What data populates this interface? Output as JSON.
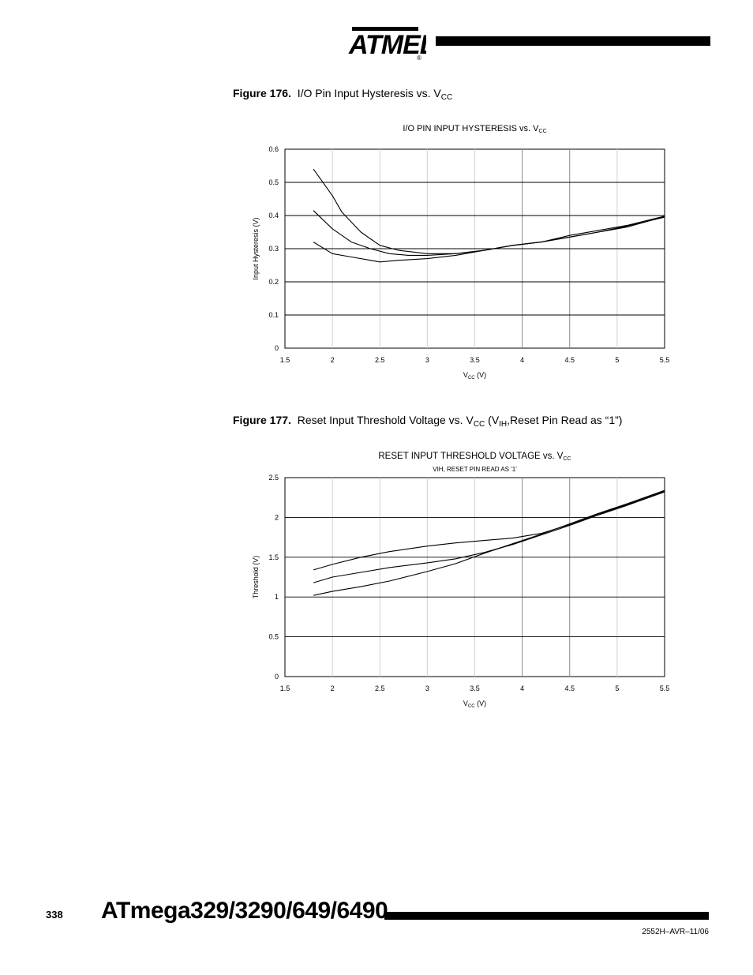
{
  "header": {
    "brand": "ATMEL",
    "registered_mark": "®"
  },
  "figures": [
    {
      "label": "Figure 176.",
      "caption_main": "I/O Pin Input Hysteresis vs. V",
      "caption_sub": "CC",
      "caption_tail": "",
      "caption_sub2": "",
      "caption_end": ""
    },
    {
      "label": "Figure 177.",
      "caption_main": "Reset Input Threshold Voltage vs. V",
      "caption_sub": "CC",
      "caption_tail": " (V",
      "caption_sub2": "IH",
      "caption_end": ",Reset Pin Read as “1”)"
    }
  ],
  "chart_data": [
    {
      "type": "line",
      "title": "I/O PIN INPUT HYSTERESIS vs. V",
      "title_sub": "CC",
      "subtitle": "",
      "xlabel": "V",
      "xlabel_sub": "CC",
      "xlabel_unit": " (V)",
      "ylabel": "Input Hysteresis (V)",
      "xlim": [
        1.5,
        5.5
      ],
      "ylim": [
        0,
        0.6
      ],
      "xticks": [
        "1.5",
        "2",
        "2.5",
        "3",
        "3.5",
        "4",
        "4.5",
        "5",
        "5.5"
      ],
      "yticks": [
        "0",
        "0.1",
        "0.2",
        "0.3",
        "0.4",
        "0.5",
        "0.6"
      ],
      "grid": {
        "horizontal": true,
        "vertical": true
      },
      "series": [
        {
          "x": [
            1.8,
            2.0,
            2.1,
            2.3,
            2.5,
            2.7,
            3.0,
            3.3,
            3.6,
            3.9,
            4.2,
            4.5,
            4.8,
            5.1,
            5.5
          ],
          "values": [
            0.54,
            0.46,
            0.41,
            0.35,
            0.31,
            0.295,
            0.285,
            0.285,
            0.295,
            0.31,
            0.32,
            0.335,
            0.35,
            0.365,
            0.397
          ]
        },
        {
          "x": [
            1.8,
            2.0,
            2.2,
            2.4,
            2.6,
            2.8,
            3.0,
            3.3,
            3.6,
            3.9,
            4.2,
            4.5,
            4.8,
            5.1,
            5.5
          ],
          "values": [
            0.415,
            0.36,
            0.32,
            0.3,
            0.285,
            0.28,
            0.28,
            0.285,
            0.295,
            0.31,
            0.32,
            0.335,
            0.35,
            0.368,
            0.395
          ]
        },
        {
          "x": [
            1.8,
            2.0,
            2.2,
            2.4,
            2.5,
            2.7,
            3.0,
            3.3,
            3.6,
            3.9,
            4.2,
            4.5,
            4.8,
            5.1,
            5.5
          ],
          "values": [
            0.32,
            0.285,
            0.275,
            0.265,
            0.26,
            0.265,
            0.27,
            0.28,
            0.295,
            0.31,
            0.32,
            0.34,
            0.355,
            0.37,
            0.398
          ]
        }
      ]
    },
    {
      "type": "line",
      "title": "RESET INPUT THRESHOLD VOLTAGE vs. V",
      "title_sub": "CC",
      "subtitle": "VIH, RESET PIN READ AS '1'",
      "xlabel": "V",
      "xlabel_sub": "CC",
      "xlabel_unit": " (V)",
      "ylabel": "Threshold (V)",
      "xlim": [
        1.5,
        5.5
      ],
      "ylim": [
        0,
        2.5
      ],
      "xticks": [
        "1.5",
        "2",
        "2.5",
        "3",
        "3.5",
        "4",
        "4.5",
        "5",
        "5.5"
      ],
      "yticks": [
        "0",
        "0.5",
        "1",
        "1.5",
        "2",
        "2.5"
      ],
      "grid": {
        "horizontal": true,
        "vertical": true
      },
      "series": [
        {
          "x": [
            1.8,
            2.0,
            2.3,
            2.6,
            3.0,
            3.3,
            3.6,
            3.9,
            4.2,
            4.5,
            4.8,
            5.1,
            5.5
          ],
          "values": [
            1.34,
            1.41,
            1.5,
            1.57,
            1.64,
            1.68,
            1.71,
            1.74,
            1.8,
            1.91,
            2.04,
            2.16,
            2.33
          ]
        },
        {
          "x": [
            1.8,
            2.0,
            2.3,
            2.6,
            3.0,
            3.3,
            3.6,
            3.9,
            4.2,
            4.5,
            4.8,
            5.1,
            5.5
          ],
          "values": [
            1.18,
            1.25,
            1.31,
            1.37,
            1.43,
            1.48,
            1.56,
            1.66,
            1.78,
            1.9,
            2.03,
            2.15,
            2.32
          ]
        },
        {
          "x": [
            1.8,
            2.0,
            2.3,
            2.6,
            3.0,
            3.3,
            3.6,
            3.9,
            4.2,
            4.5,
            4.8,
            5.1,
            5.5
          ],
          "values": [
            1.02,
            1.07,
            1.13,
            1.2,
            1.32,
            1.42,
            1.55,
            1.67,
            1.79,
            1.92,
            2.05,
            2.17,
            2.34
          ]
        }
      ]
    }
  ],
  "footer": {
    "page_number": "338",
    "doc_title": "ATmega329/3290/649/6490",
    "doc_code": "2552H–AVR–11/06"
  }
}
